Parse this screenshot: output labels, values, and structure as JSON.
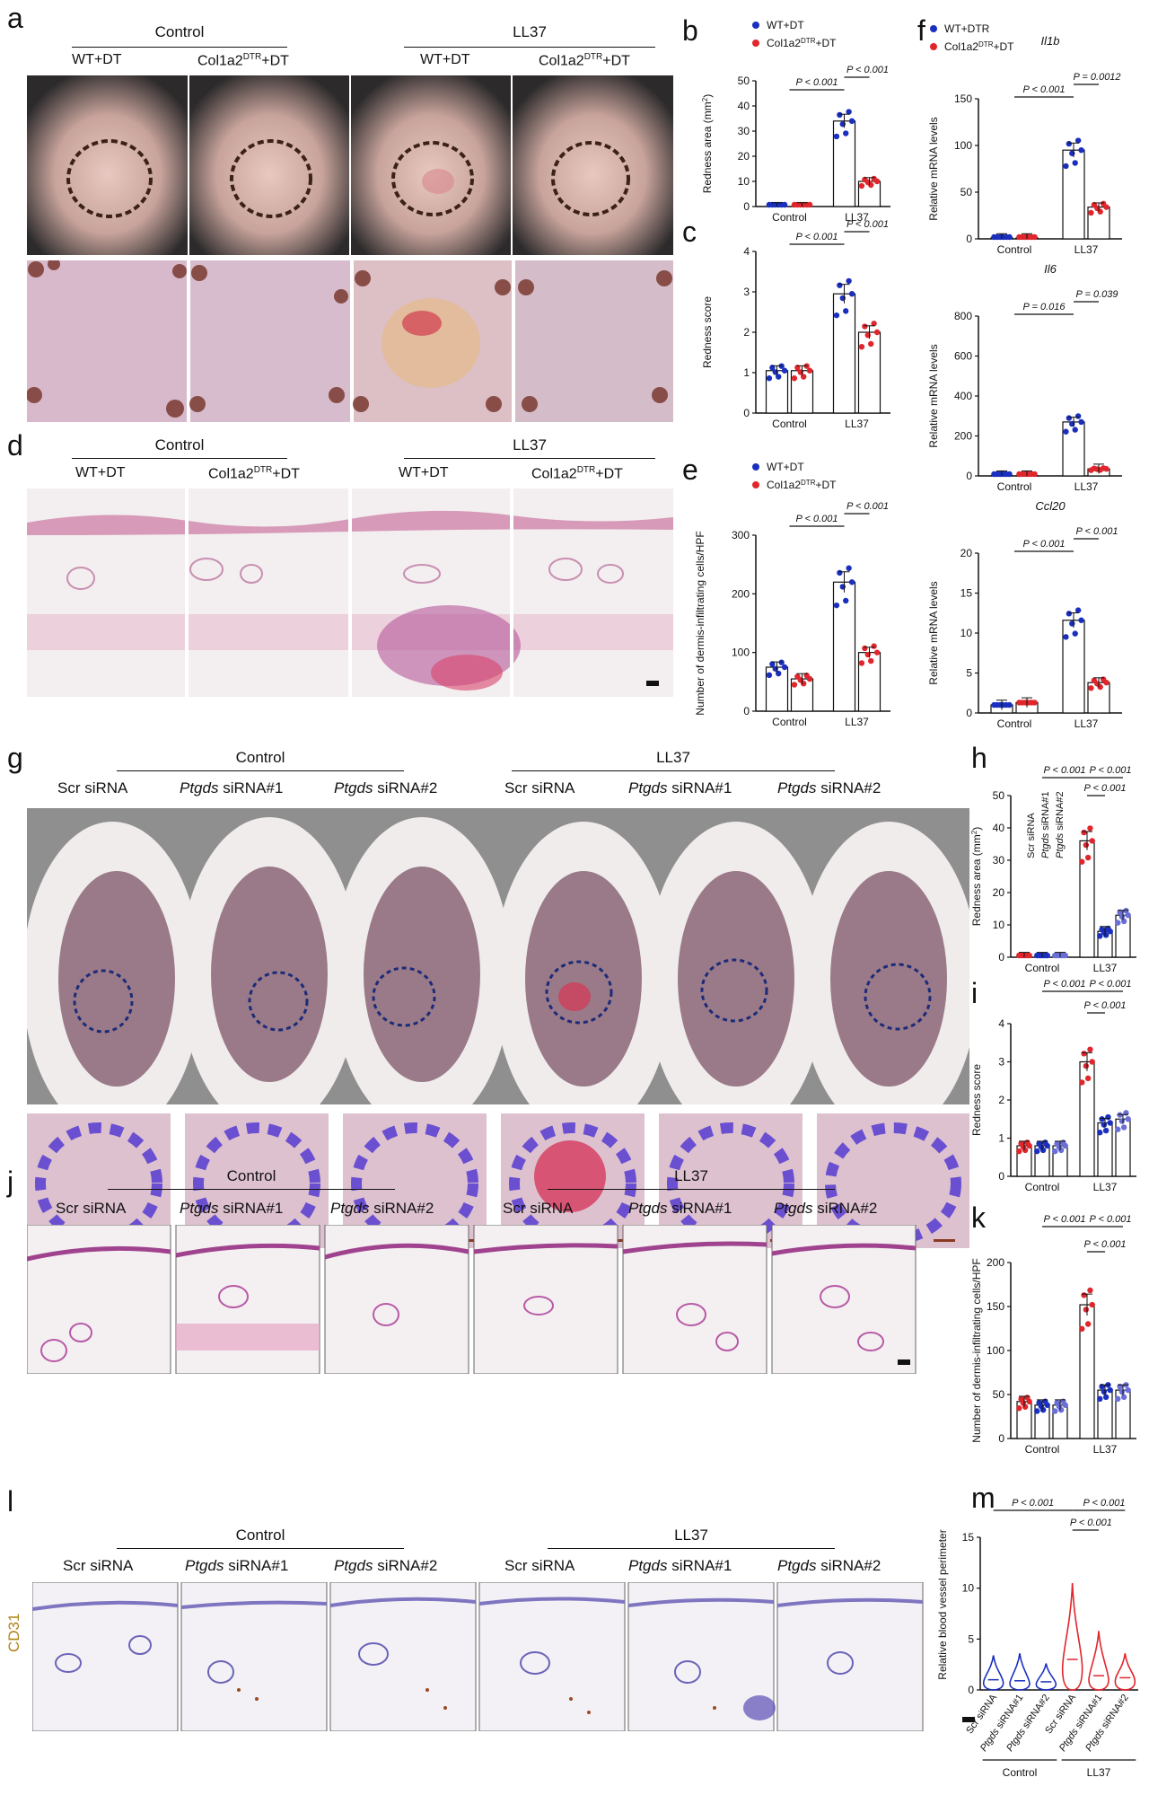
{
  "panel_labels": [
    "a",
    "b",
    "c",
    "d",
    "e",
    "f",
    "g",
    "h",
    "i",
    "j",
    "k",
    "l",
    "m"
  ],
  "groups": {
    "control": "Control",
    "ll37": "LL37"
  },
  "cond_ad": [
    "WT+DT",
    "Col1a2",
    "DTR",
    "+DT"
  ],
  "cond_gjl": [
    "Scr siRNA",
    "Ptgds",
    "siRNA#1",
    "siRNA#2"
  ],
  "stain_label": "CD31",
  "legend_be": [
    "WT+DT",
    "Col1a2",
    "DTR",
    "+DT"
  ],
  "legend_f": [
    "WT+DTR",
    "Col1a2",
    "DTR",
    "+DT"
  ],
  "colors": {
    "wt": "#1a2fbf",
    "ko": "#e0262c",
    "scr_ctrl": "#e0262c",
    "si1": "#1a2fbf",
    "si2": "#6a6fd8"
  },
  "chart_data": [
    {
      "id": "b",
      "type": "bar",
      "ylabel": "Redness area (mm",
      "ylabel_sup": "2",
      "ylabel_end": ")",
      "ylim": [
        0,
        50
      ],
      "yticks": [
        0,
        10,
        20,
        30,
        40,
        50
      ],
      "categories": [
        "Control",
        "LL37"
      ],
      "series": [
        {
          "name": "WT+DT",
          "values": [
            0,
            34
          ]
        },
        {
          "name": "Col1a2DTR+DT",
          "values": [
            0,
            10
          ]
        }
      ],
      "annotations": [
        "P < 0.001",
        "P < 0.001"
      ]
    },
    {
      "id": "c",
      "type": "bar",
      "ylabel": "Redness score",
      "ylim": [
        0,
        4
      ],
      "yticks": [
        0,
        1,
        2,
        3,
        4
      ],
      "categories": [
        "Control",
        "LL37"
      ],
      "series": [
        {
          "name": "WT+DT",
          "values": [
            1.05,
            2.95
          ]
        },
        {
          "name": "Col1a2DTR+DT",
          "values": [
            1.05,
            2.0
          ]
        }
      ],
      "annotations": [
        "P < 0.001",
        "P < 0.001"
      ]
    },
    {
      "id": "e",
      "type": "bar",
      "ylabel": "Number of dermis-infiltrating cells/HPF",
      "ylim": [
        0,
        300
      ],
      "yticks": [
        0,
        100,
        200,
        300
      ],
      "categories": [
        "Control",
        "LL37"
      ],
      "series": [
        {
          "name": "WT+DT",
          "values": [
            75,
            220
          ]
        },
        {
          "name": "Col1a2DTR+DT",
          "values": [
            55,
            100
          ]
        }
      ],
      "annotations": [
        "P < 0.001",
        "P < 0.001"
      ]
    },
    {
      "id": "f1",
      "type": "bar",
      "title": "Il1b",
      "ylabel": "Relative mRNA levels",
      "ylim": [
        0,
        150
      ],
      "yticks": [
        0,
        50,
        100,
        150
      ],
      "categories": [
        "Control",
        "LL37"
      ],
      "series": [
        {
          "name": "WT+DTR",
          "values": [
            1,
            95
          ]
        },
        {
          "name": "Col1a2DTR+DT",
          "values": [
            1,
            34
          ]
        }
      ],
      "annotations": [
        "P < 0.001",
        "P = 0.0012"
      ]
    },
    {
      "id": "f2",
      "type": "bar",
      "title": "Il6",
      "ylabel": "Relative mRNA levels",
      "ylim": [
        0,
        800
      ],
      "yticks": [
        0,
        200,
        400,
        600,
        800
      ],
      "categories": [
        "Control",
        "LL37"
      ],
      "series": [
        {
          "name": "WT+DTR",
          "values": [
            1,
            270
          ]
        },
        {
          "name": "Col1a2DTR+DT",
          "values": [
            1,
            35
          ]
        }
      ],
      "annotations": [
        "P = 0.016",
        "P = 0.039"
      ]
    },
    {
      "id": "f3",
      "type": "bar",
      "title": "Ccl20",
      "ylabel": "Relative mRNA levels",
      "ylim": [
        0,
        20
      ],
      "yticks": [
        0,
        5,
        10,
        15,
        20
      ],
      "categories": [
        "Control",
        "LL37"
      ],
      "series": [
        {
          "name": "WT+DTR",
          "values": [
            1,
            11.6
          ]
        },
        {
          "name": "Col1a2DTR+DT",
          "values": [
            1.3,
            3.8
          ]
        }
      ],
      "annotations": [
        "P < 0.001",
        "P < 0.001"
      ]
    },
    {
      "id": "h",
      "type": "bar",
      "ylabel": "Redness area (mm",
      "ylabel_sup": "2",
      "ylabel_end": ")",
      "ylim": [
        0,
        50
      ],
      "yticks": [
        0,
        10,
        20,
        30,
        40,
        50
      ],
      "categories": [
        "Control",
        "LL37"
      ],
      "series": [
        {
          "name": "Scr siRNA",
          "values": [
            0,
            36
          ]
        },
        {
          "name": "Ptgds siRNA#1",
          "values": [
            0,
            8
          ]
        },
        {
          "name": "Ptgds siRNA#2",
          "values": [
            0,
            13
          ]
        }
      ],
      "annotations": [
        "P < 0.001",
        "P < 0.001",
        "P < 0.001"
      ]
    },
    {
      "id": "i",
      "type": "bar",
      "ylabel": "Redness score",
      "ylim": [
        0,
        4
      ],
      "yticks": [
        0,
        1,
        2,
        3,
        4
      ],
      "categories": [
        "Control",
        "LL37"
      ],
      "series": [
        {
          "name": "Scr siRNA",
          "values": [
            0.8,
            3.0
          ]
        },
        {
          "name": "Ptgds siRNA#1",
          "values": [
            0.8,
            1.4
          ]
        },
        {
          "name": "Ptgds siRNA#2",
          "values": [
            0.8,
            1.5
          ]
        }
      ],
      "annotations": [
        "P < 0.001",
        "P < 0.001",
        "P < 0.001"
      ]
    },
    {
      "id": "k",
      "type": "bar",
      "ylabel": "Number of dermis-infiltrating cells/HPF",
      "ylim": [
        0,
        200
      ],
      "yticks": [
        0,
        50,
        100,
        150,
        200
      ],
      "categories": [
        "Control",
        "LL37"
      ],
      "series": [
        {
          "name": "Scr siRNA",
          "values": [
            42,
            152
          ]
        },
        {
          "name": "Ptgds siRNA#1",
          "values": [
            38,
            55
          ]
        },
        {
          "name": "Ptgds siRNA#2",
          "values": [
            38,
            55
          ]
        }
      ],
      "annotations": [
        "P < 0.001",
        "P < 0.001",
        "P < 0.001"
      ]
    },
    {
      "id": "m",
      "type": "violin",
      "ylabel": "Relative blood vessel perimeter",
      "ylim": [
        0,
        15
      ],
      "yticks": [
        0,
        5,
        10,
        15
      ],
      "categories": [
        "Scr siRNA",
        "Ptgds siRNA#1",
        "Ptgds siRNA#2",
        "Scr siRNA",
        "Ptgds siRNA#1",
        "Ptgds siRNA#2"
      ],
      "medians": [
        1,
        0.9,
        0.8,
        3,
        1.4,
        1.2
      ],
      "maxima": [
        3.4,
        3.6,
        2.6,
        10.5,
        5.8,
        3.6
      ],
      "annotations": [
        "P < 0.001",
        "P < 0.001",
        "P < 0.001"
      ]
    }
  ]
}
